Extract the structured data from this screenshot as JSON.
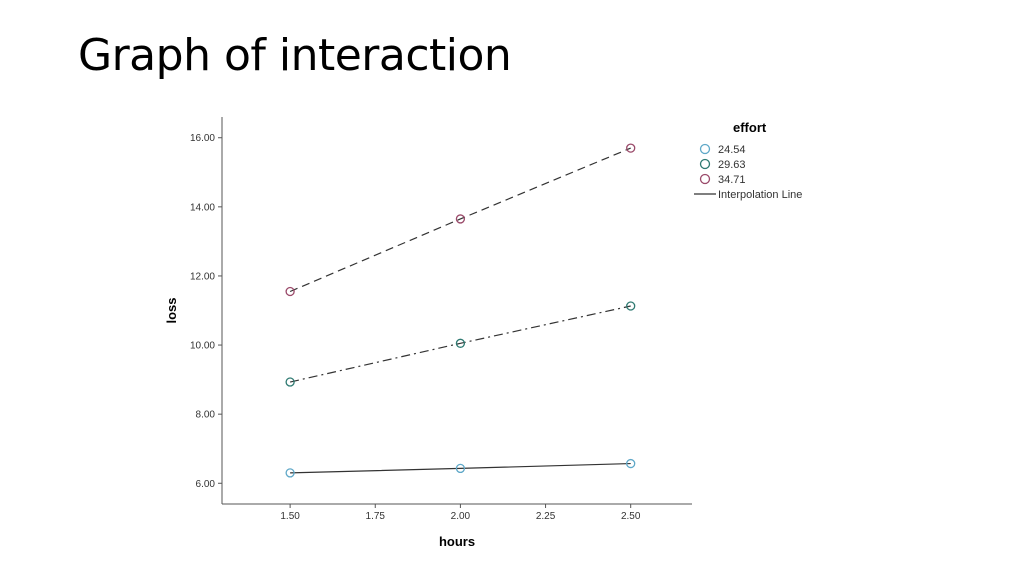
{
  "slide": {
    "title": "Graph of interaction"
  },
  "chart_data": {
    "type": "line",
    "title": "",
    "xlabel": "hours",
    "ylabel": "loss",
    "x": [
      1.5,
      2.0,
      2.5
    ],
    "xlim": [
      1.3,
      2.68
    ],
    "ylim": [
      5.4,
      16.6
    ],
    "xticks": [
      "1.50",
      "1.75",
      "2.00",
      "2.25",
      "2.50"
    ],
    "xtick_values": [
      1.5,
      1.75,
      2.0,
      2.25,
      2.5
    ],
    "yticks": [
      "6.00",
      "8.00",
      "10.00",
      "12.00",
      "14.00",
      "16.00"
    ],
    "ytick_values": [
      6,
      8,
      10,
      12,
      14,
      16
    ],
    "grid": false,
    "legend": {
      "title": "effort",
      "placement": "top-right outside",
      "interpolation_label": "Interpolation Line"
    },
    "series": [
      {
        "name": "24.54",
        "values": [
          6.3,
          6.43,
          6.57
        ],
        "marker_color": "#5fa8c8",
        "line_style": "solid"
      },
      {
        "name": "29.63",
        "values": [
          8.93,
          10.05,
          11.13
        ],
        "marker_color": "#2f7a72",
        "line_style": "dashdot"
      },
      {
        "name": "34.71",
        "values": [
          11.55,
          13.65,
          15.7
        ],
        "marker_color": "#9a4a6a",
        "line_style": "dashed"
      }
    ]
  }
}
